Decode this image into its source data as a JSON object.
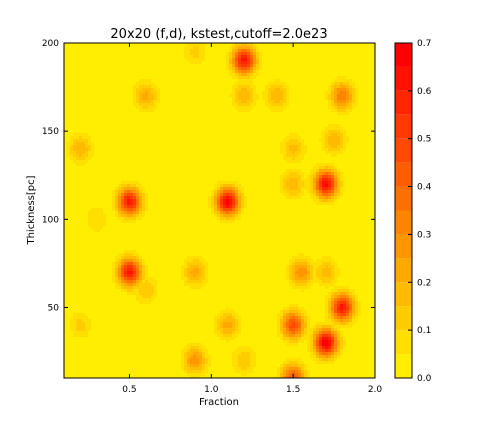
{
  "chart_data": {
    "type": "heatmap",
    "title": "20x20 (f,d), kstest,cutoff=2.0e23",
    "xlabel": "Fraction",
    "ylabel": "Thickness[pc]",
    "xlim": [
      0.1,
      2.0
    ],
    "ylim": [
      10,
      200
    ],
    "xticks": [
      0.5,
      1.0,
      1.5,
      2.0
    ],
    "xtick_labels": [
      "0.5",
      "1.0",
      "1.5",
      "2.0"
    ],
    "yticks": [
      50,
      100,
      150,
      200
    ],
    "ytick_labels": [
      "50",
      "100",
      "150",
      "200"
    ],
    "colorbar": {
      "min": 0.0,
      "max": 0.7,
      "ticks": [
        0.0,
        0.1,
        0.2,
        0.3,
        0.4,
        0.5,
        0.6,
        0.7
      ],
      "tick_labels": [
        "0.0",
        "0.1",
        "0.2",
        "0.3",
        "0.4",
        "0.5",
        "0.6",
        "0.7"
      ],
      "levels": [
        0.0,
        0.05,
        0.1,
        0.15,
        0.2,
        0.25,
        0.3,
        0.35,
        0.4,
        0.45,
        0.5,
        0.55,
        0.6,
        0.65,
        0.7
      ],
      "colors": [
        "#ffee00",
        "#ffdf00",
        "#ffcc00",
        "#ffbb00",
        "#ffa800",
        "#ff9600",
        "#ff8400",
        "#ff7000",
        "#ff5d00",
        "#ff4a00",
        "#ff3900",
        "#ff2600",
        "#ff1300",
        "#ff0000"
      ]
    },
    "peaks": [
      {
        "x": 1.2,
        "y": 190,
        "value": 0.62
      },
      {
        "x": 1.2,
        "y": 170,
        "value": 0.2
      },
      {
        "x": 0.9,
        "y": 195,
        "value": 0.12
      },
      {
        "x": 0.6,
        "y": 170,
        "value": 0.22
      },
      {
        "x": 1.4,
        "y": 170,
        "value": 0.2
      },
      {
        "x": 1.8,
        "y": 170,
        "value": 0.35
      },
      {
        "x": 1.75,
        "y": 145,
        "value": 0.2
      },
      {
        "x": 0.2,
        "y": 140,
        "value": 0.2
      },
      {
        "x": 1.5,
        "y": 140,
        "value": 0.17
      },
      {
        "x": 0.5,
        "y": 110,
        "value": 0.62
      },
      {
        "x": 1.1,
        "y": 110,
        "value": 0.68
      },
      {
        "x": 1.7,
        "y": 120,
        "value": 0.66
      },
      {
        "x": 1.5,
        "y": 120,
        "value": 0.2
      },
      {
        "x": 0.3,
        "y": 100,
        "value": 0.1
      },
      {
        "x": 0.5,
        "y": 70,
        "value": 0.62
      },
      {
        "x": 0.9,
        "y": 70,
        "value": 0.22
      },
      {
        "x": 1.55,
        "y": 70,
        "value": 0.3
      },
      {
        "x": 1.7,
        "y": 70,
        "value": 0.18
      },
      {
        "x": 1.8,
        "y": 50,
        "value": 0.62
      },
      {
        "x": 0.6,
        "y": 60,
        "value": 0.15
      },
      {
        "x": 1.1,
        "y": 40,
        "value": 0.22
      },
      {
        "x": 1.5,
        "y": 40,
        "value": 0.48
      },
      {
        "x": 0.2,
        "y": 40,
        "value": 0.12
      },
      {
        "x": 0.9,
        "y": 20,
        "value": 0.28
      },
      {
        "x": 1.7,
        "y": 30,
        "value": 0.7
      },
      {
        "x": 1.5,
        "y": 10,
        "value": 0.45
      },
      {
        "x": 1.2,
        "y": 20,
        "value": 0.15
      }
    ]
  }
}
